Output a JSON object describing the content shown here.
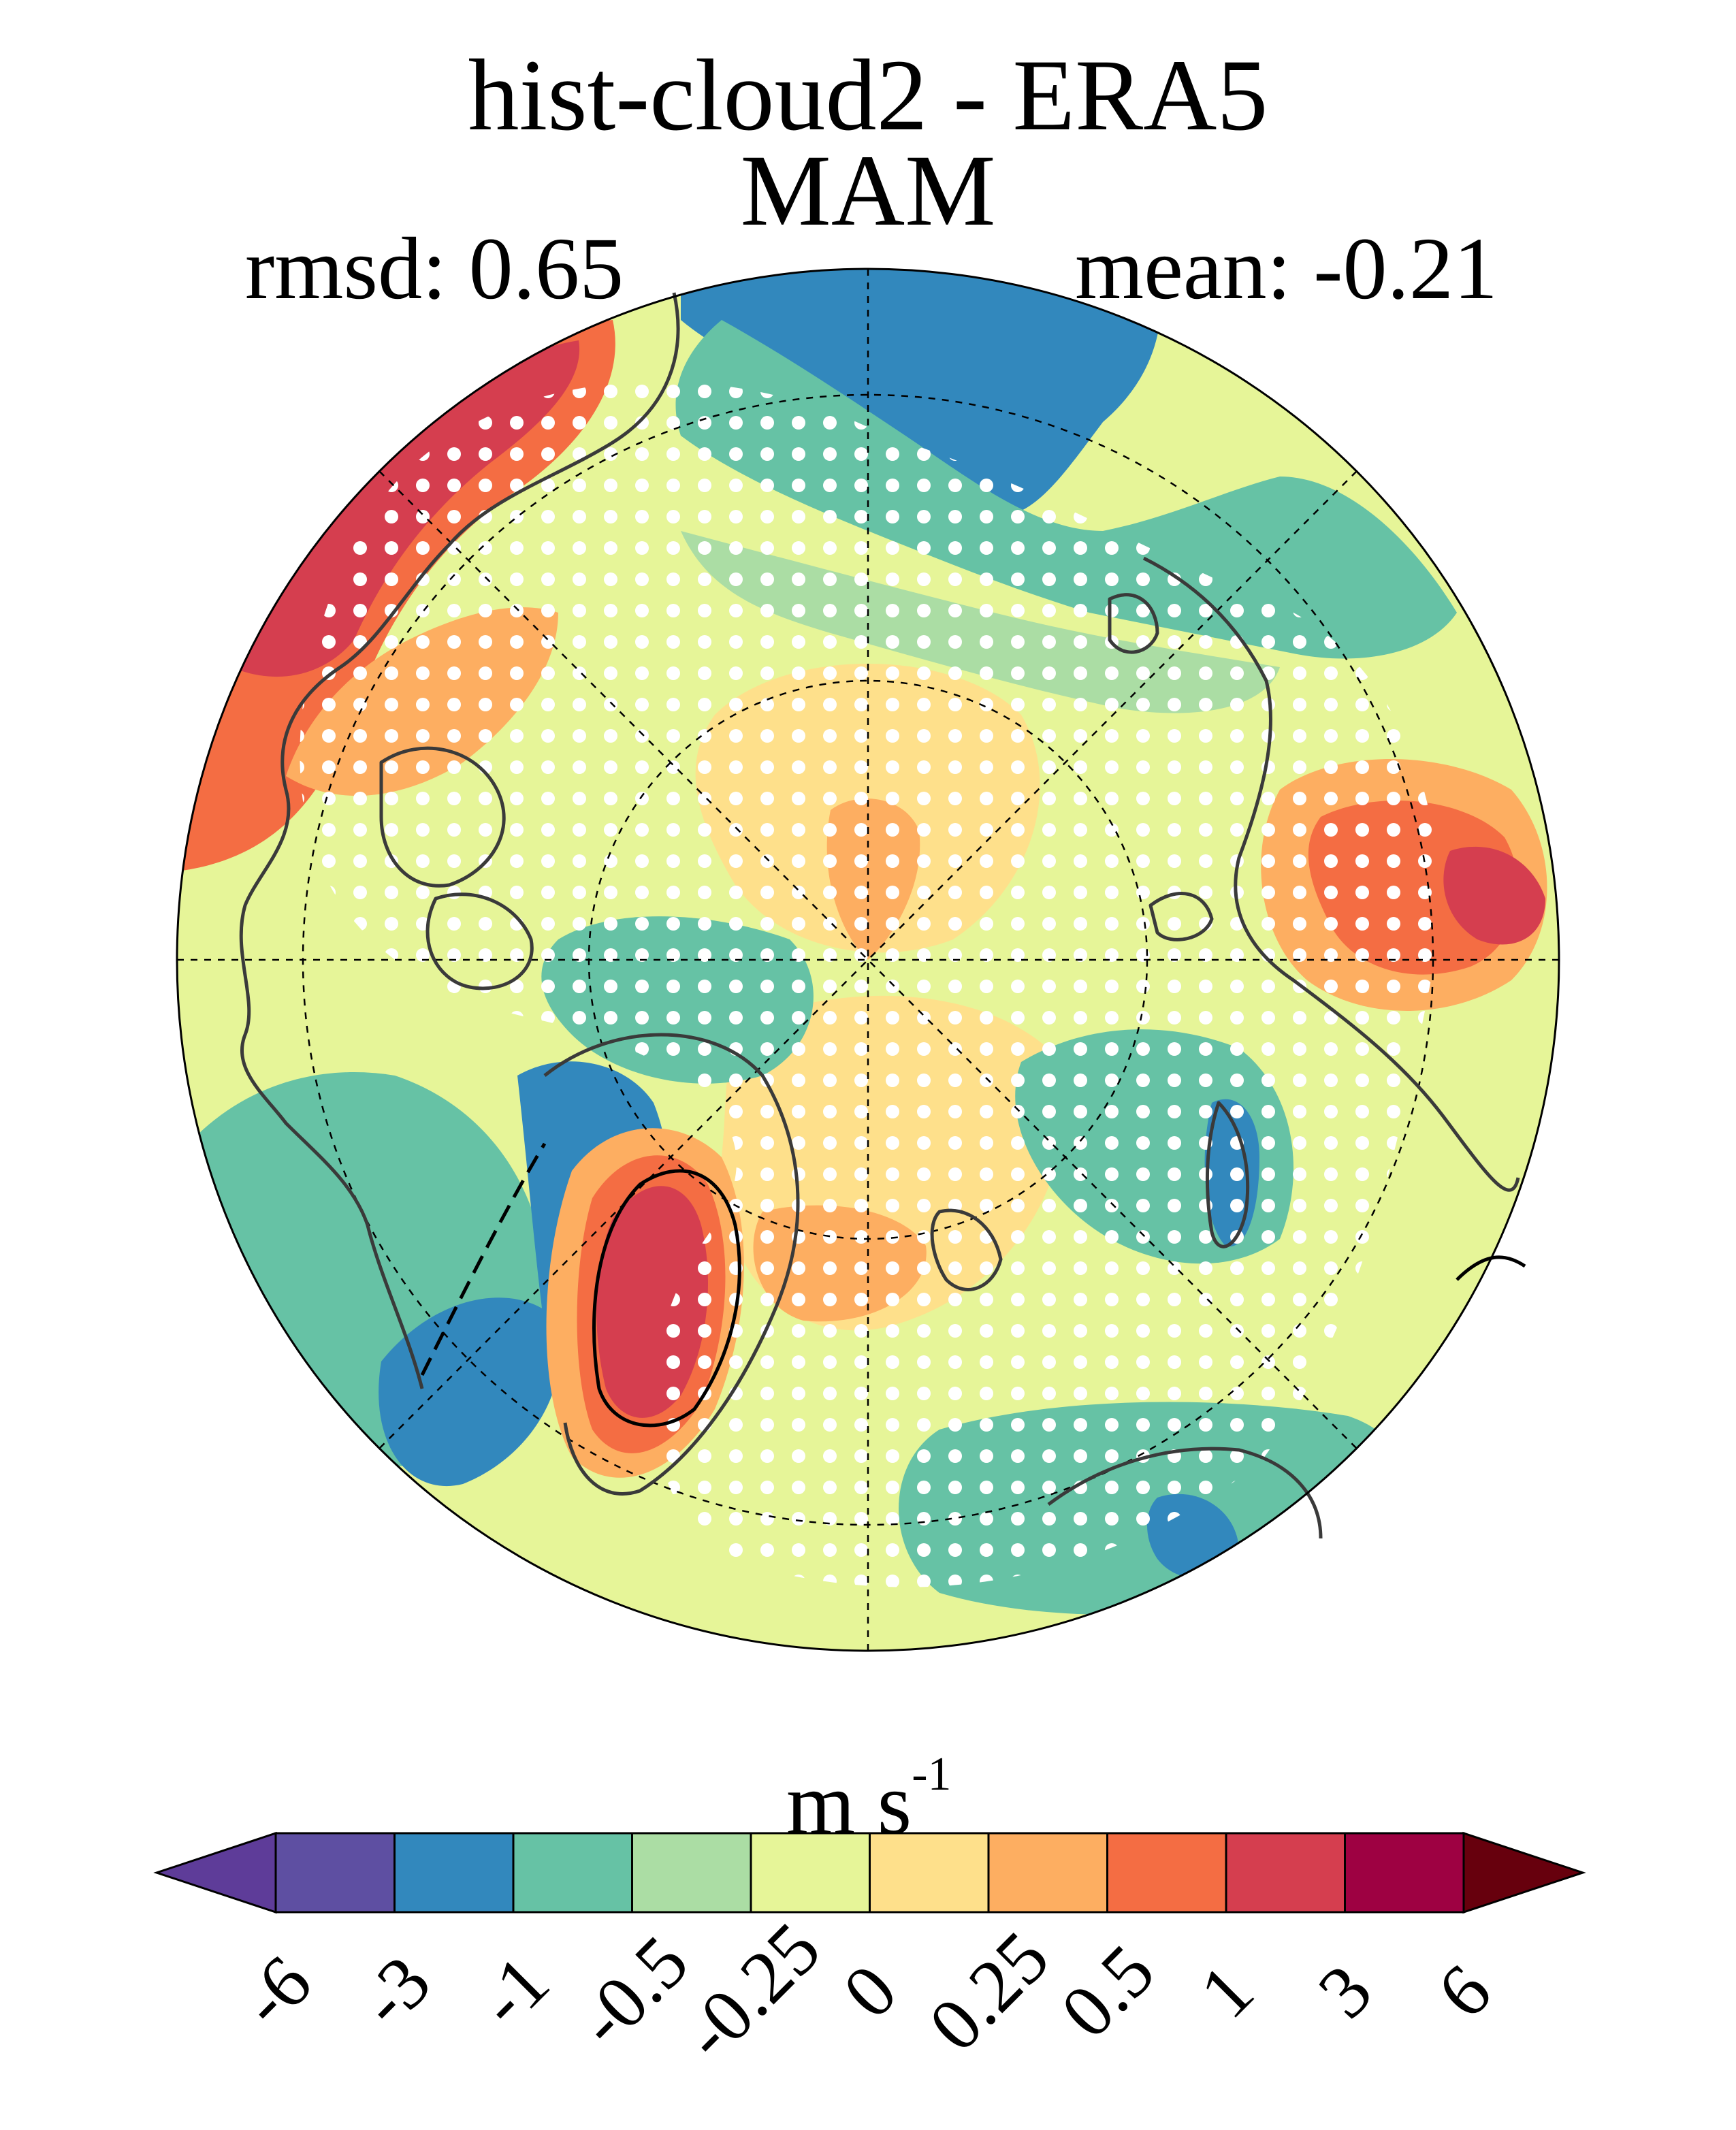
{
  "title_line1": "hist-cloud2 - ERA5",
  "title_line2": "MAM",
  "rmsd_text": "rmsd: 0.65",
  "mean_text": "mean: -0.21",
  "colorbar": {
    "unit_base": "m s",
    "unit_exponent": "-1",
    "ticks": [
      "-6",
      "-3",
      "-1",
      "-0.5",
      "-0.25",
      "0",
      "0.25",
      "0.5",
      "1",
      "3",
      "6"
    ],
    "colors": [
      "#5e3c99",
      "#5e4fa2",
      "#3288bd",
      "#66c2a5",
      "#abdda4",
      "#e6f598",
      "#fee08b",
      "#fdae61",
      "#f46d43",
      "#d53e4f",
      "#9e0142",
      "#67000d"
    ]
  },
  "map": {
    "projection": "north-polar-stereographic",
    "background_color": "#e6f598",
    "stippling": "white dots mark significant areas"
  }
}
